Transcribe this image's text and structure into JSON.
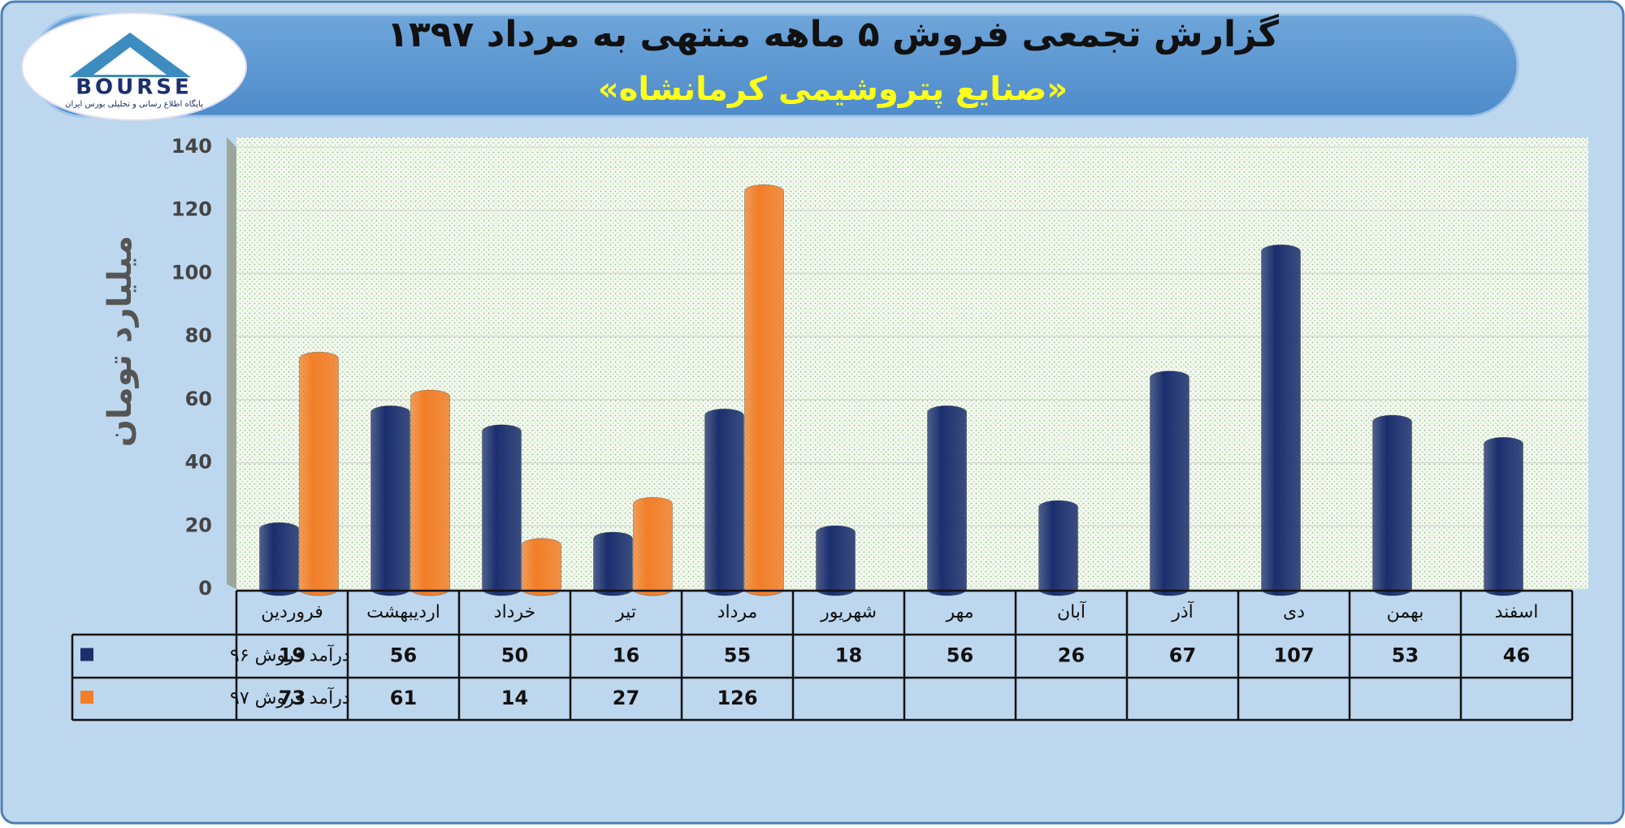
{
  "logo": {
    "brand": "BOURSE",
    "tagline": "پایگاه اطلاع رسانی و تحلیلی بورس ایران"
  },
  "chart_data": {
    "type": "bar",
    "title": "گزارش تجمعی فروش ۵ ماهه منتهی به مرداد ۱۳۹۷",
    "subtitle": "«صنایع پتروشیمی کرمانشاه»",
    "y_label": "میلیارد تومان",
    "categories": [
      "فروردین",
      "اردیبهشت",
      "خرداد",
      "تیر",
      "مرداد",
      "شهریور",
      "مهر",
      "آبان",
      "آذر",
      "دی",
      "بهمن",
      "اسفند"
    ],
    "series": [
      {
        "name": "درآمد فروش ۹۶",
        "color": "#1b2f6e",
        "values": [
          19,
          56,
          50,
          16,
          55,
          18,
          56,
          26,
          67,
          107,
          53,
          46
        ]
      },
      {
        "name": "درآمد فروش ۹۷",
        "color": "#f27e28",
        "values": [
          73,
          61,
          14,
          27,
          126,
          null,
          null,
          null,
          null,
          null,
          null,
          null
        ]
      }
    ],
    "ylim": [
      0,
      140
    ],
    "yticks": [
      0,
      20,
      40,
      60,
      80,
      100,
      120,
      140
    ],
    "grid": true
  }
}
